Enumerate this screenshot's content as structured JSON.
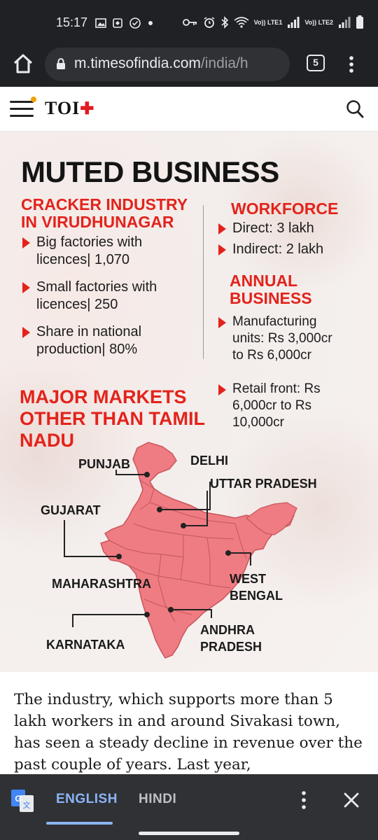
{
  "status_bar": {
    "time": "15:17",
    "left_icons": [
      "image-icon",
      "app-icon",
      "check-circle-icon",
      "dot-icon"
    ],
    "right_icons": [
      "key-icon",
      "alarm-icon",
      "bluetooth-icon",
      "wifi-icon",
      "volte-lte1-icon",
      "volte-lte2-icon",
      "battery-icon"
    ],
    "sim1_label": "Vo)) LTE1",
    "sim2_label": "Vo)) LTE2"
  },
  "browser": {
    "url_domain": "m.timesofindia.com",
    "url_path": "/india/h",
    "tab_count": "5"
  },
  "site_header": {
    "logo": "TOI",
    "logo_plus": "✚"
  },
  "infographic": {
    "title": "MUTED BUSINESS",
    "industry": {
      "heading": [
        "CRACKER INDUSTRY",
        "IN VIRUDHUNAGAR"
      ],
      "bullets": [
        [
          "Big factories with",
          "licences| 1,070"
        ],
        [
          "Small factories with",
          "licences| 250"
        ],
        [
          "Share in national",
          "production| 80%"
        ]
      ]
    },
    "workforce": {
      "heading": "WORKFORCE",
      "bullets": [
        "Direct: 3 lakh",
        "Indirect: 2 lakh"
      ]
    },
    "annual_business": {
      "heading": [
        "ANNUAL",
        "BUSINESS"
      ],
      "bullets": [
        [
          "Manufacturing",
          "units: Rs 3,000cr",
          "to Rs 6,000cr"
        ],
        [
          "Retail front: Rs",
          "6,000cr to Rs",
          "10,000cr"
        ]
      ]
    },
    "markets": {
      "heading": [
        "MAJOR MARKETS",
        "OTHER THAN TAMIL",
        "NADU"
      ],
      "states": {
        "punjab": "PUNJAB",
        "delhi": "DELHI",
        "uttar_pradesh": "UTTAR PRADESH",
        "gujarat": "GUJARAT",
        "maharashtra": "MAHARASHTRA",
        "west_bengal": [
          "WEST",
          "BENGAL"
        ],
        "karnataka": "KARNATAKA",
        "andhra_pradesh": [
          "ANDHRA",
          "PRADESH"
        ]
      }
    },
    "colors": {
      "accent_red": "#e3231b",
      "map_fill": "#ef7c82"
    }
  },
  "article": {
    "text": "The industry, which supports more than 5 lakh workers in and around Sivakasi town, has seen a steady decline in revenue over the past couple of years. Last year,"
  },
  "translate_bar": {
    "language_selected": "ENGLISH",
    "language_other": "HINDI"
  }
}
